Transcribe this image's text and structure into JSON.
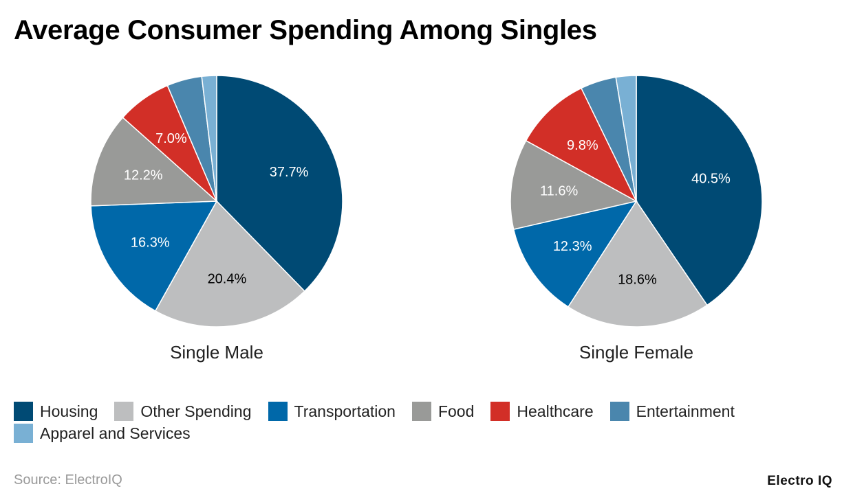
{
  "title": "Average Consumer Spending Among Singles",
  "source": "Source: ElectroIQ",
  "brand": "Electro IQ",
  "chart_data": [
    {
      "type": "pie",
      "title": "Single Male",
      "categories": [
        "Housing",
        "Other Spending",
        "Transportation",
        "Food",
        "Healthcare",
        "Entertainment",
        "Apparel and Services"
      ],
      "values": [
        37.7,
        20.4,
        16.3,
        12.2,
        7.0,
        4.5,
        1.9
      ],
      "labels": [
        "37.7%",
        "20.4%",
        "16.3%",
        "12.2%",
        "7.0%",
        "",
        ""
      ]
    },
    {
      "type": "pie",
      "title": "Single Female",
      "categories": [
        "Housing",
        "Other Spending",
        "Transportation",
        "Food",
        "Healthcare",
        "Entertainment",
        "Apparel and Services"
      ],
      "values": [
        40.5,
        18.6,
        12.3,
        11.6,
        9.8,
        4.6,
        2.6
      ],
      "labels": [
        "40.5%",
        "18.6%",
        "12.3%",
        "11.6%",
        "9.8%",
        "",
        ""
      ]
    }
  ],
  "legend": [
    {
      "label": "Housing",
      "color": "#004a74"
    },
    {
      "label": "Other Spending",
      "color": "#bdbebf"
    },
    {
      "label": "Transportation",
      "color": "#0068a9"
    },
    {
      "label": "Food",
      "color": "#999a98"
    },
    {
      "label": "Healthcare",
      "color": "#d22f27"
    },
    {
      "label": "Entertainment",
      "color": "#4a86ad"
    },
    {
      "label": "Apparel and Services",
      "color": "#79b0d4"
    }
  ],
  "label_colors": [
    "#ffffff",
    "#000000",
    "#ffffff",
    "#ffffff",
    "#ffffff",
    "#ffffff",
    "#ffffff"
  ]
}
